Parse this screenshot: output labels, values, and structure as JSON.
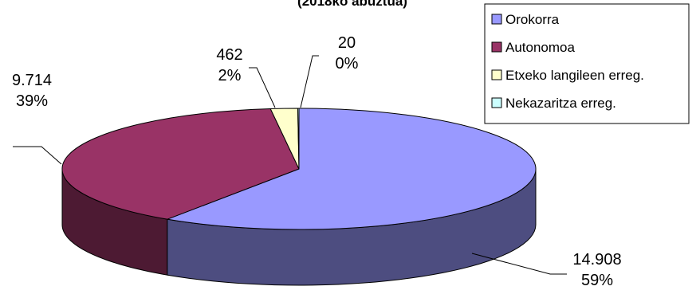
{
  "chart_data": {
    "type": "pie",
    "subtitle": "(2018ko abuztua)",
    "categories": [
      "Orokorra",
      "Autonomoa",
      "Etxeko langileen erreg.",
      "Nekazaritza erreg."
    ],
    "values": [
      14908,
      9714,
      462,
      20
    ],
    "value_labels": [
      "14.908",
      "9.714",
      "462",
      "20"
    ],
    "percent_labels": [
      "59%",
      "39%",
      "2%",
      "0%"
    ],
    "colors": [
      "#9999ff",
      "#993366",
      "#ffffcc",
      "#ccffff"
    ],
    "legend_position": "top-right",
    "style": "3d-pie"
  }
}
